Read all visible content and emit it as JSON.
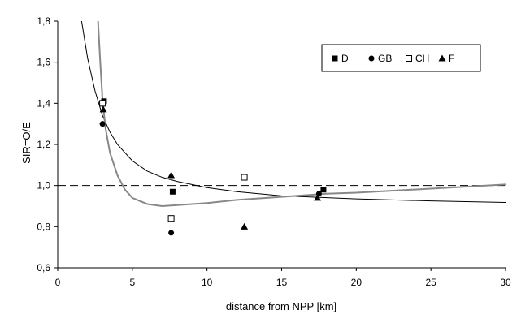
{
  "chart_data": {
    "type": "scatter",
    "title": "",
    "xlabel": "distance from NPP [km]",
    "ylabel": "SIR=O/E",
    "xlim": [
      0,
      30
    ],
    "ylim": [
      0.6,
      1.8
    ],
    "x_ticks": [
      "0",
      "5",
      "10",
      "15",
      "20",
      "25",
      "30"
    ],
    "y_ticks": [
      "0,6",
      "0,8",
      "1,0",
      "1,2",
      "1,4",
      "1,6",
      "1,8"
    ],
    "x_tick_values": [
      0,
      5,
      10,
      15,
      20,
      25,
      30
    ],
    "y_tick_values": [
      0.6,
      0.8,
      1.0,
      1.2,
      1.4,
      1.6,
      1.8
    ],
    "grid": false,
    "legend_position": "top-right",
    "reference_line": {
      "y": 1.0,
      "style": "dashed"
    },
    "series": [
      {
        "name": "D",
        "marker": "filled-square",
        "color": "#000000",
        "points": [
          [
            3.1,
            1.41
          ],
          [
            7.7,
            0.97
          ],
          [
            17.8,
            0.98
          ]
        ]
      },
      {
        "name": "GB",
        "marker": "filled-circle",
        "color": "#000000",
        "points": [
          [
            3.0,
            1.3
          ],
          [
            7.6,
            0.77
          ],
          [
            17.5,
            0.96
          ]
        ]
      },
      {
        "name": "CH",
        "marker": "open-square",
        "color": "#000000",
        "points": [
          [
            3.0,
            1.4
          ],
          [
            7.6,
            0.84
          ],
          [
            12.5,
            1.04
          ]
        ]
      },
      {
        "name": "F",
        "marker": "filled-triangle",
        "color": "#000000",
        "points": [
          [
            3.05,
            1.37
          ],
          [
            7.6,
            1.05
          ],
          [
            12.5,
            0.8
          ],
          [
            17.4,
            0.94
          ]
        ]
      }
    ],
    "curves": [
      {
        "color": "#000000",
        "points": [
          [
            1.6,
            1.8
          ],
          [
            2.0,
            1.62
          ],
          [
            2.5,
            1.46
          ],
          [
            3.0,
            1.34
          ],
          [
            3.5,
            1.26
          ],
          [
            4.0,
            1.2
          ],
          [
            5.0,
            1.12
          ],
          [
            6.0,
            1.07
          ],
          [
            7.0,
            1.04
          ],
          [
            8.0,
            1.02
          ],
          [
            10.0,
            0.99
          ],
          [
            12.0,
            0.97
          ],
          [
            15.0,
            0.95
          ],
          [
            20.0,
            0.935
          ],
          [
            25.0,
            0.925
          ],
          [
            30.0,
            0.918
          ]
        ]
      },
      {
        "color": "#888888",
        "points": [
          [
            2.7,
            1.8
          ],
          [
            2.85,
            1.6
          ],
          [
            3.0,
            1.42
          ],
          [
            3.2,
            1.28
          ],
          [
            3.5,
            1.16
          ],
          [
            4.0,
            1.05
          ],
          [
            4.5,
            0.98
          ],
          [
            5.0,
            0.94
          ],
          [
            6.0,
            0.91
          ],
          [
            7.0,
            0.9
          ],
          [
            8.0,
            0.905
          ],
          [
            10.0,
            0.915
          ],
          [
            12.0,
            0.93
          ],
          [
            15.0,
            0.945
          ],
          [
            18.0,
            0.96
          ],
          [
            20.0,
            0.965
          ],
          [
            25.0,
            0.985
          ],
          [
            30.0,
            1.005
          ]
        ]
      }
    ]
  }
}
